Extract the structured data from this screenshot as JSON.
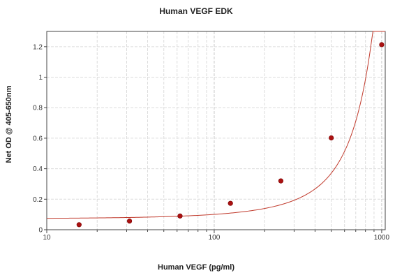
{
  "chart_data": {
    "type": "scatter",
    "title": "Human VEGF EDK",
    "xlabel": "Human VEGF (pg/ml)",
    "ylabel": "Net OD @ 405-650nm",
    "x_scale": "log",
    "xlim": [
      10,
      1050
    ],
    "ylim": [
      0,
      1.3
    ],
    "x_ticks": [
      10,
      100,
      1000
    ],
    "x_tick_labels": [
      "10",
      "100",
      "1000"
    ],
    "y_ticks": [
      0,
      0.2,
      0.4,
      0.6,
      0.8,
      1,
      1.2
    ],
    "y_tick_labels": [
      "0",
      "0.2",
      "0.4",
      "0.6",
      "0.8",
      "1",
      "1.2"
    ],
    "grid": true,
    "series": [
      {
        "x": [
          15.6,
          31.2,
          62.5,
          125,
          250,
          500,
          1000
        ],
        "y": [
          0.033,
          0.057,
          0.09,
          0.173,
          0.32,
          0.602,
          1.213
        ],
        "color": "#aa1111"
      }
    ],
    "fit_curve": {
      "type": "exponential",
      "color": "#c0392b"
    }
  }
}
